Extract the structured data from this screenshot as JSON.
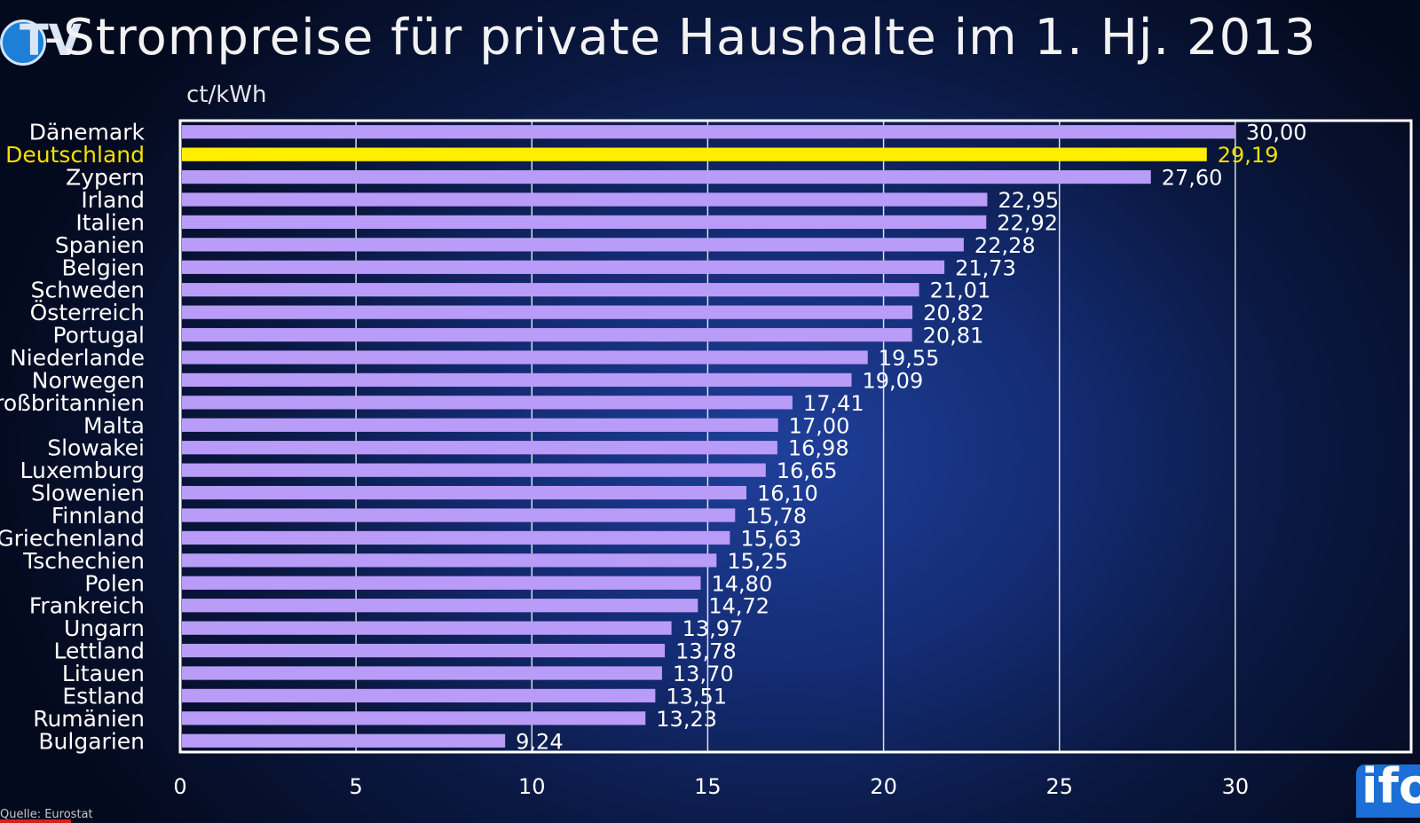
{
  "title": "-Strompreise für private Haushalte im 1. Hj. 2013",
  "corner_logo_text": "TV",
  "footer_logo_text": "ifo",
  "source_text": "Quelle: Eurostat",
  "colors": {
    "bar": "#b89cf7",
    "highlight_bar": "#ffee00",
    "highlight_text": "#f2e000",
    "text": "#ffffff",
    "grid": "#ffffff"
  },
  "chart_data": {
    "type": "bar",
    "orientation": "horizontal",
    "title": "-Strompreise für private Haushalte im 1. Hj. 2013",
    "unit_label": "ct/kWh",
    "categories": [
      "Dänemark",
      "Deutschland",
      "Zypern",
      "Irland",
      "Italien",
      "Spanien",
      "Belgien",
      "Schweden",
      "Österreich",
      "Portugal",
      "Niederlande",
      "Norwegen",
      "Großbritannien",
      "Malta",
      "Slowakei",
      "Luxemburg",
      "Slowenien",
      "Finnland",
      "Griechenland",
      "Tschechien",
      "Polen",
      "Frankreich",
      "Ungarn",
      "Lettland",
      "Litauen",
      "Estland",
      "Rumänien",
      "Bulgarien"
    ],
    "values": [
      30.0,
      29.19,
      27.6,
      22.95,
      22.92,
      22.28,
      21.73,
      21.01,
      20.82,
      20.81,
      19.55,
      19.09,
      17.41,
      17.0,
      16.98,
      16.65,
      16.1,
      15.78,
      15.63,
      15.25,
      14.8,
      14.72,
      13.97,
      13.78,
      13.7,
      13.51,
      13.23,
      9.24
    ],
    "value_labels": [
      "30,00",
      "29,19",
      "27,60",
      "22,95",
      "22,92",
      "22,28",
      "21,73",
      "21,01",
      "20,82",
      "20,81",
      "19,55",
      "19,09",
      "17,41",
      "17,00",
      "16,98",
      "16,65",
      "16,10",
      "15,78",
      "15,63",
      "15,25",
      "14,80",
      "14,72",
      "13,97",
      "13,78",
      "13,70",
      "13,51",
      "13,23",
      "9,24"
    ],
    "highlight": "Deutschland",
    "x_ticks": [
      0,
      5,
      10,
      15,
      20,
      25,
      30
    ],
    "xlim": [
      0,
      35
    ],
    "grid": true,
    "legend": "none"
  }
}
